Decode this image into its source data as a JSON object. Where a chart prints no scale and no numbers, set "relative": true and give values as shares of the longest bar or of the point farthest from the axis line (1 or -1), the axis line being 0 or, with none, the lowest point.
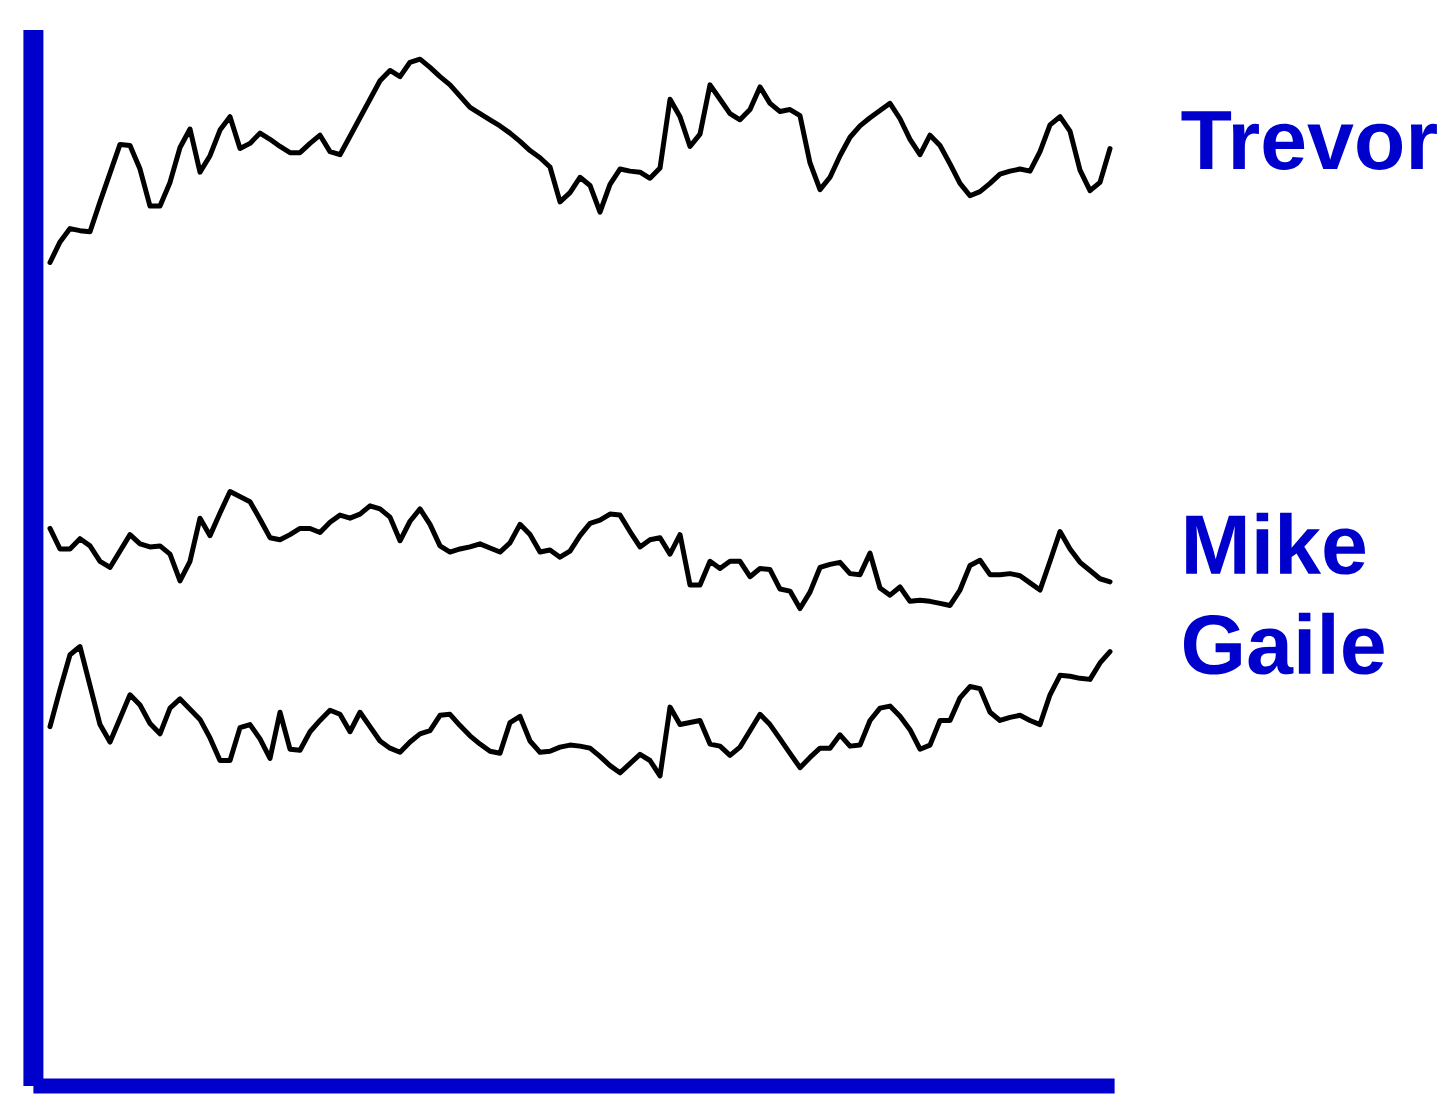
{
  "chart_data": {
    "type": "line",
    "relative": true,
    "categories": [
      null,
      null,
      null,
      null,
      null,
      null,
      null,
      null,
      null,
      null,
      null,
      null,
      null,
      null,
      null,
      null,
      null,
      null,
      null,
      null,
      null,
      null,
      null,
      null,
      null,
      null,
      null,
      null,
      null,
      null,
      null,
      null,
      null,
      null,
      null,
      null,
      null,
      null,
      null,
      null,
      null,
      null,
      null,
      null,
      null,
      null,
      null,
      null,
      null,
      null,
      null,
      null,
      null,
      null,
      null,
      null,
      null,
      null,
      null,
      null,
      null,
      null,
      null,
      null,
      null,
      null,
      null,
      null,
      null,
      null,
      null,
      null,
      null,
      null,
      null,
      null,
      null,
      null,
      null,
      null,
      null,
      null,
      null,
      null,
      null,
      null,
      null,
      null,
      null,
      null,
      null,
      null,
      null,
      null,
      null,
      null,
      null,
      null,
      null,
      null,
      null,
      null,
      null,
      null,
      null,
      null,
      null
    ],
    "series": [
      {
        "name": "Trevor",
        "color": "#000000",
        "values": [
          0.802,
          0.822,
          0.835,
          0.833,
          0.832,
          0.861,
          0.889,
          0.917,
          0.916,
          0.893,
          0.857,
          0.857,
          0.88,
          0.914,
          0.932,
          0.89,
          0.906,
          0.931,
          0.944,
          0.913,
          0.918,
          0.928,
          0.922,
          0.915,
          0.909,
          0.909,
          0.918,
          0.926,
          0.91,
          0.907,
          0.925,
          0.943,
          0.961,
          0.979,
          0.989,
          0.983,
          0.997,
          1,
          0.992,
          0.983,
          0.975,
          0.964,
          0.953,
          0.947,
          0.941,
          0.935,
          0.928,
          0.92,
          0.911,
          0.904,
          0.895,
          0.861,
          0.87,
          0.885,
          0.877,
          0.851,
          0.878,
          0.893,
          0.891,
          0.89,
          0.884,
          0.894,
          0.961,
          0.944,
          0.915,
          0.927,
          0.975,
          0.961,
          0.947,
          0.941,
          0.951,
          0.973,
          0.957,
          0.949,
          0.951,
          0.945,
          0.899,
          0.873,
          0.885,
          0.906,
          0.924,
          0.935,
          0.943,
          0.95,
          0.957,
          0.942,
          0.922,
          0.907,
          0.926,
          0.916,
          0.898,
          0.879,
          0.867,
          0.871,
          0.879,
          0.888,
          0.891,
          0.893,
          0.891,
          0.91,
          0.936,
          0.944,
          0.93,
          0.892,
          0.872,
          0.88,
          0.913
        ]
      },
      {
        "name": "Mike",
        "color": "#000000",
        "values": [
          0.543,
          0.523,
          0.523,
          0.533,
          0.526,
          0.511,
          0.505,
          0.521,
          0.537,
          0.528,
          0.525,
          0.526,
          0.518,
          0.492,
          0.511,
          0.553,
          0.536,
          0.558,
          0.579,
          0.574,
          0.569,
          0.552,
          0.534,
          0.532,
          0.537,
          0.543,
          0.543,
          0.539,
          0.549,
          0.556,
          0.553,
          0.557,
          0.565,
          0.562,
          0.554,
          0.531,
          0.55,
          0.562,
          0.547,
          0.526,
          0.52,
          0.523,
          0.525,
          0.528,
          0.524,
          0.52,
          0.529,
          0.547,
          0.537,
          0.52,
          0.522,
          0.515,
          0.521,
          0.536,
          0.548,
          0.551,
          0.557,
          0.556,
          0.54,
          0.525,
          0.532,
          0.534,
          0.518,
          0.537,
          0.488,
          0.488,
          0.511,
          0.504,
          0.511,
          0.511,
          0.496,
          0.504,
          0.503,
          0.484,
          0.482,
          0.465,
          0.481,
          0.505,
          0.508,
          0.51,
          0.499,
          0.498,
          0.519,
          0.485,
          0.478,
          0.486,
          0.472,
          0.473,
          0.472,
          0.47,
          0.468,
          0.483,
          0.507,
          0.512,
          0.498,
          0.498,
          0.499,
          0.497,
          0.49,
          0.483,
          0.511,
          0.54,
          0.523,
          0.51,
          0.502,
          0.494,
          0.491
        ]
      },
      {
        "name": "Gaile",
        "color": "#000000",
        "values": [
          0.35,
          0.386,
          0.42,
          0.428,
          0.39,
          0.352,
          0.335,
          0.358,
          0.381,
          0.371,
          0.353,
          0.343,
          0.368,
          0.377,
          0.367,
          0.357,
          0.339,
          0.317,
          0.317,
          0.349,
          0.352,
          0.338,
          0.319,
          0.364,
          0.328,
          0.327,
          0.345,
          0.356,
          0.366,
          0.362,
          0.345,
          0.364,
          0.35,
          0.336,
          0.329,
          0.325,
          0.335,
          0.343,
          0.346,
          0.361,
          0.362,
          0.351,
          0.341,
          0.333,
          0.326,
          0.324,
          0.354,
          0.36,
          0.336,
          0.325,
          0.326,
          0.33,
          0.332,
          0.331,
          0.329,
          0.321,
          0.312,
          0.305,
          0.314,
          0.323,
          0.317,
          0.302,
          0.369,
          0.352,
          0.354,
          0.356,
          0.333,
          0.331,
          0.322,
          0.33,
          0.346,
          0.362,
          0.352,
          0.338,
          0.324,
          0.31,
          0.32,
          0.329,
          0.329,
          0.342,
          0.331,
          0.332,
          0.356,
          0.368,
          0.37,
          0.36,
          0.347,
          0.328,
          0.332,
          0.356,
          0.356,
          0.378,
          0.389,
          0.387,
          0.364,
          0.356,
          0.359,
          0.361,
          0.356,
          0.352,
          0.381,
          0.4,
          0.399,
          0.397,
          0.396,
          0.412,
          0.423
        ]
      }
    ]
  }
}
